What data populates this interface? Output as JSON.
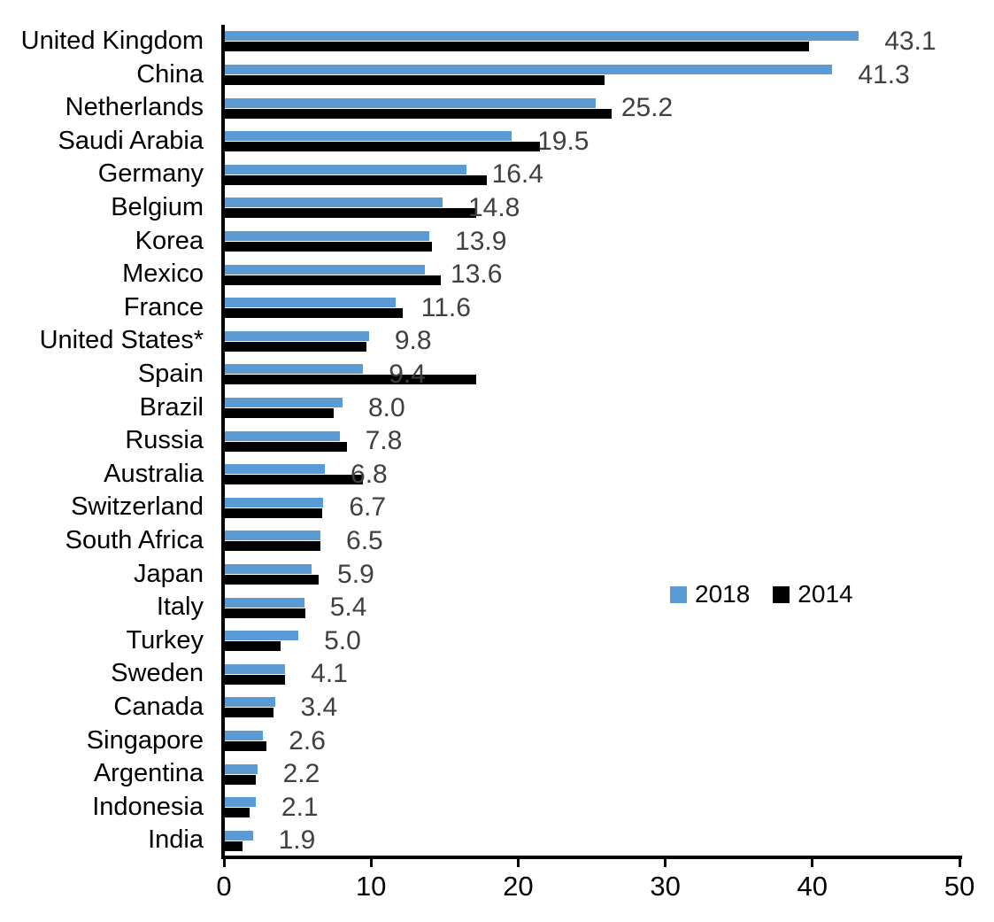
{
  "chart_data": {
    "type": "bar",
    "orientation": "horizontal",
    "title": "",
    "xlabel": "",
    "ylabel": "",
    "categories": [
      "United Kingdom",
      "China",
      "Netherlands",
      "Saudi Arabia",
      "Germany",
      "Belgium",
      "Korea",
      "Mexico",
      "France",
      "United States*",
      "Spain",
      "Brazil",
      "Russia",
      "Australia",
      "Switzerland",
      "South Africa",
      "Japan",
      "Italy",
      "Turkey",
      "Sweden",
      "Canada",
      "Singapore",
      "Argentina",
      "Indonesia",
      "India"
    ],
    "series": [
      {
        "name": "2018",
        "color": "#5B9BD5",
        "values": [
          43.1,
          41.3,
          25.2,
          19.5,
          16.4,
          14.8,
          13.9,
          13.6,
          11.6,
          9.8,
          9.4,
          8.0,
          7.8,
          6.8,
          6.7,
          6.5,
          5.9,
          5.4,
          5.0,
          4.1,
          3.4,
          2.6,
          2.2,
          2.1,
          1.9
        ]
      },
      {
        "name": "2014",
        "color": "#000000",
        "values": [
          39.7,
          25.8,
          26.3,
          21.4,
          17.8,
          17.1,
          14.1,
          14.7,
          12.1,
          9.6,
          17.1,
          7.4,
          8.3,
          9.4,
          6.6,
          6.5,
          6.4,
          5.5,
          3.8,
          4.1,
          3.3,
          2.8,
          2.1,
          1.7,
          1.2
        ]
      }
    ],
    "data_labels": {
      "on_series": "2018",
      "decimals": 1,
      "color": "#404040"
    },
    "x_axis": {
      "min": 0,
      "max": 50,
      "ticks": [
        0,
        10,
        20,
        30,
        40,
        50
      ]
    },
    "grid": "off",
    "legend": {
      "position": "center-right",
      "entries": [
        "2018",
        "2014"
      ]
    }
  }
}
